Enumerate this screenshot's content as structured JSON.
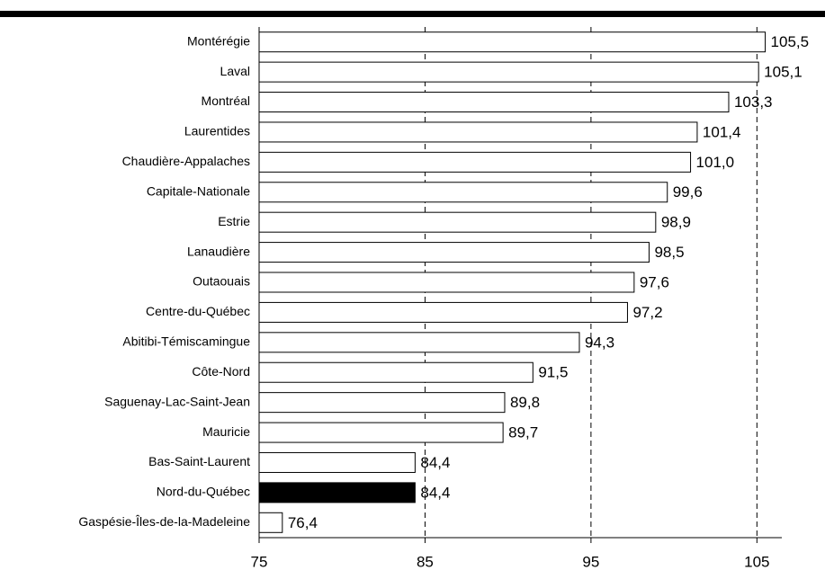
{
  "chart_data": {
    "type": "bar",
    "orientation": "horizontal",
    "categories": [
      "Montérégie",
      "Laval",
      "Montréal",
      "Laurentides",
      "Chaudière-Appalaches",
      "Capitale-Nationale",
      "Estrie",
      "Lanaudière",
      "Outaouais",
      "Centre-du-Québec",
      "Abitibi-Témiscamingue",
      "Côte-Nord",
      "Saguenay-Lac-Saint-Jean",
      "Mauricie",
      "Bas-Saint-Laurent",
      "Nord-du-Québec",
      "Gaspésie-Îles-de-la-Madeleine"
    ],
    "values": [
      105.5,
      105.1,
      103.3,
      101.4,
      101.0,
      99.6,
      98.9,
      98.5,
      97.6,
      97.2,
      94.3,
      91.5,
      89.8,
      89.7,
      84.4,
      84.4,
      76.4
    ],
    "value_labels": [
      "105,5",
      "105,1",
      "103,3",
      "101,4",
      "101,0",
      "99,6",
      "98,9",
      "98,5",
      "97,6",
      "97,2",
      "94,3",
      "91,5",
      "89,8",
      "89,7",
      "84,4",
      "84,4",
      "76,4"
    ],
    "colors": [
      "#ffffff",
      "#ffffff",
      "#ffffff",
      "#ffffff",
      "#ffffff",
      "#ffffff",
      "#ffffff",
      "#ffffff",
      "#ffffff",
      "#ffffff",
      "#ffffff",
      "#ffffff",
      "#ffffff",
      "#ffffff",
      "#ffffff",
      "#000000",
      "#ffffff"
    ],
    "xlim": [
      75,
      106.5
    ],
    "xticks": [
      75,
      85,
      95,
      105
    ],
    "grid": true,
    "grid_style": "dashed"
  }
}
